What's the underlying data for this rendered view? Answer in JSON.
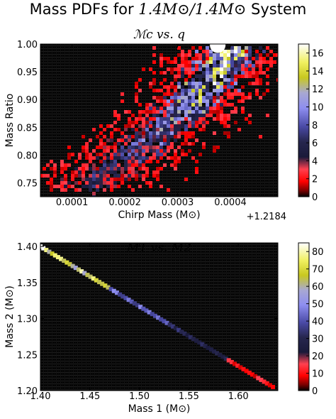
{
  "figure": {
    "title_prefix": "Mass PDFs for ",
    "title_math": "1.4M⊙/1.4M⊙",
    "title_suffix": " System"
  },
  "chart_data": [
    {
      "type": "heatmap",
      "title": "ℳc vs. q",
      "xlabel": "Chirp Mass (M⊙)",
      "ylabel": "Mass Ratio",
      "x_offset_label": "+1.2184",
      "xlim": [
        4e-05,
        0.00049
      ],
      "ylim": [
        0.725,
        1.0
      ],
      "xticks": [
        0.0001,
        0.0002,
        0.0003,
        0.0004
      ],
      "xtick_labels": [
        "0.0001",
        "0.0002",
        "0.0003",
        "0.0004"
      ],
      "yticks": [
        0.75,
        0.8,
        0.85,
        0.9,
        0.95,
        1.0
      ],
      "ytick_labels": [
        "0.75",
        "0.80",
        "0.85",
        "0.90",
        "0.95",
        "1.00"
      ],
      "colorbar": {
        "min": 0,
        "max": 17,
        "ticks": [
          0,
          2,
          4,
          6,
          8,
          10,
          12,
          14,
          16
        ],
        "tick_labels": [
          "0",
          "2",
          "4",
          "6",
          "8",
          "10",
          "12",
          "14",
          "16"
        ]
      },
      "ridge": [
        {
          "x": 0.00012,
          "y": 0.745
        },
        {
          "x": 0.0002,
          "y": 0.8
        },
        {
          "x": 0.00028,
          "y": 0.86
        },
        {
          "x": 0.00033,
          "y": 0.9
        },
        {
          "x": 0.00038,
          "y": 0.96
        },
        {
          "x": 0.0004,
          "y": 0.99
        }
      ],
      "peak_density": 16.5
    },
    {
      "type": "heatmap",
      "title": "M1 vs. M2",
      "xlabel": "Mass 1 (M⊙)",
      "ylabel": "Mass 2 (M⊙)",
      "xlim": [
        1.4,
        1.64
      ],
      "ylim": [
        1.2,
        1.405
      ],
      "xticks": [
        1.4,
        1.45,
        1.5,
        1.55,
        1.6
      ],
      "xtick_labels": [
        "1.40",
        "1.45",
        "1.50",
        "1.55",
        "1.60"
      ],
      "yticks": [
        1.2,
        1.25,
        1.3,
        1.35,
        1.4
      ],
      "ytick_labels": [
        "1.20",
        "1.25",
        "1.30",
        "1.35",
        "1.40"
      ],
      "colorbar": {
        "min": 0,
        "max": 85,
        "ticks": [
          0,
          10,
          20,
          30,
          40,
          50,
          60,
          70,
          80
        ],
        "tick_labels": [
          "0",
          "10",
          "20",
          "30",
          "40",
          "50",
          "60",
          "70",
          "80"
        ]
      },
      "line": [
        {
          "x": 1.4,
          "y": 1.4
        },
        {
          "x": 1.635,
          "y": 1.205
        }
      ],
      "peak_density": 85
    }
  ]
}
